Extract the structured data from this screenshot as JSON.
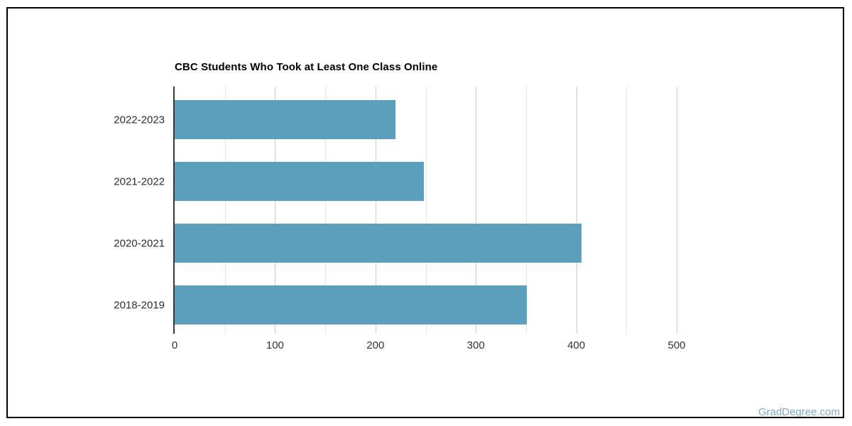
{
  "chart_data": {
    "type": "bar",
    "orientation": "horizontal",
    "title": "CBC Students Who Took at Least One Class Online",
    "categories": [
      "2022-2023",
      "2021-2022",
      "2020-2021",
      "2018-2019"
    ],
    "values": [
      220,
      248,
      405,
      351
    ],
    "xlabel": "",
    "ylabel": "",
    "xlim": [
      0,
      500
    ],
    "x_major_ticks": [
      0,
      100,
      200,
      300,
      400,
      500
    ],
    "x_minor_tick_step": 50,
    "grid": true,
    "legend": false,
    "bar_color": "#5C9FBD"
  },
  "colors": {
    "background": "#FFFFFF",
    "frame_border": "#000000",
    "axis_line": "#373737",
    "grid_major": "#CCCCCC",
    "grid_minor": "#E6E6E6",
    "tick_label": "#333333",
    "category_label": "#2E2E2E",
    "title": "#000000",
    "watermark": "#7FA9C4"
  },
  "watermark": {
    "text": "GradDegree.com"
  }
}
